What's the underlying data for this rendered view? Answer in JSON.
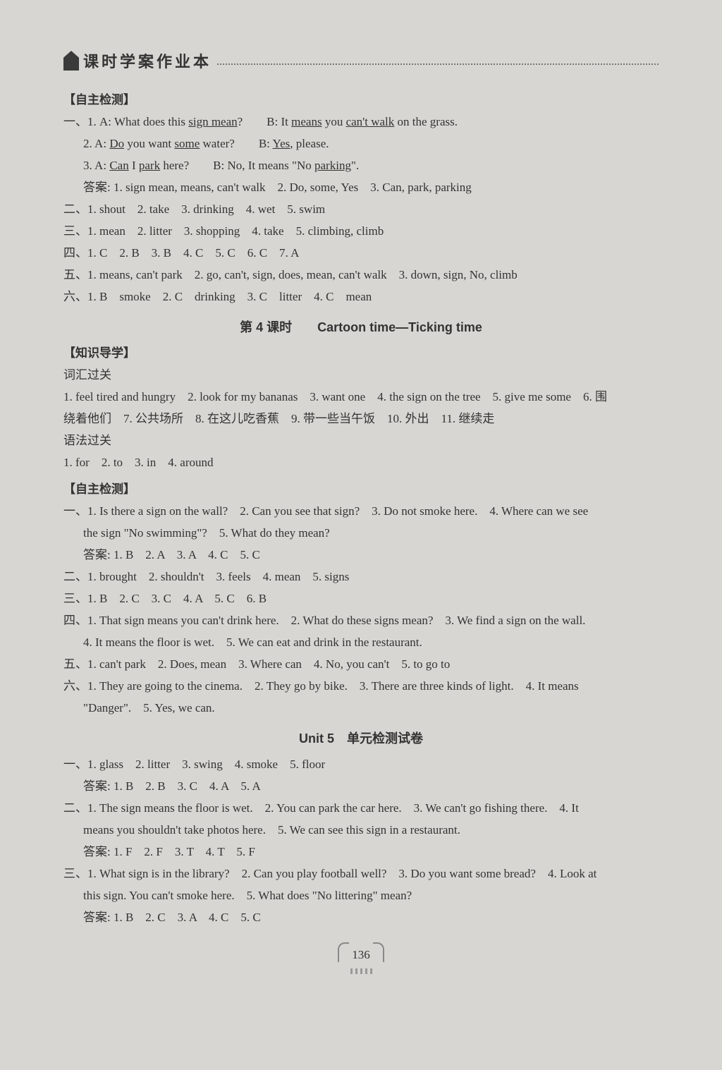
{
  "header": {
    "title": "课时学案作业本"
  },
  "sec1": {
    "label": "【自主检测】",
    "l1a": "一、1. A: What does this ",
    "l1b": "sign mean",
    "l1c": "?　　B: It ",
    "l1d": "means",
    "l1e": " you ",
    "l1f": "can't walk",
    "l1g": " on the grass.",
    "l2a": "2. A: ",
    "l2b": "Do",
    "l2c": " you want ",
    "l2d": "some",
    "l2e": " water?　　B: ",
    "l2f": "Yes",
    "l2g": ", please.",
    "l3a": "3. A: ",
    "l3b": "Can",
    "l3c": " I ",
    "l3d": "park",
    "l3e": " here?　　B: No, It means \"No ",
    "l3f": "parking",
    "l3g": "\".",
    "ans1": "答案: 1. sign mean, means, can't walk　2. Do, some, Yes　3. Can, park, parking",
    "l4": "二、1. shout　2. take　3. drinking　4. wet　5. swim",
    "l5": "三、1. mean　2. litter　3. shopping　4. take　5. climbing, climb",
    "l6": "四、1. C　2. B　3. B　4. C　5. C　6. C　7. A",
    "l7": "五、1. means, can't park　2. go, can't, sign, does, mean, can't walk　3. down, sign, No, climb",
    "l8": "六、1. B　smoke　2. C　drinking　3. C　litter　4. C　mean"
  },
  "title2": "第 4 课时　　Cartoon time—Ticking time",
  "sec2": {
    "label": "【知识导学】",
    "sub1": "词汇过关",
    "l1": "1. feel tired and hungry　2. look for my bananas　3. want one　4. the sign on the tree　5. give me some　6. 围",
    "l1b": "绕着他们　7. 公共场所　8. 在这儿吃香蕉　9. 带一些当午饭　10. 外出　11. 继续走",
    "sub2": "语法过关",
    "l2": "1. for　2. to　3. in　4. around"
  },
  "sec3": {
    "label": "【自主检测】",
    "l1": "一、1. Is there a sign on the wall?　2. Can you see that sign?　3. Do not smoke here.　4. Where can we see",
    "l1b": "the sign \"No swimming\"?　5. What do they mean?",
    "ans1": "答案: 1. B　2. A　3. A　4. C　5. C",
    "l2": "二、1. brought　2. shouldn't　3. feels　4. mean　5. signs",
    "l3": "三、1. B　2. C　3. C　4. A　5. C　6. B",
    "l4": "四、1. That sign means you can't drink here.　2. What do these signs mean?　3. We find a sign on the wall.",
    "l4b": "4. It means the floor is wet.　5. We can eat and drink in the restaurant.",
    "l5": "五、1. can't park　2. Does, mean　3. Where can　4. No, you can't　5. to go to",
    "l6": "六、1. They are going to the cinema.　2. They go by bike.　3. There are three kinds of light.　4. It means",
    "l6b": "\"Danger\".　5. Yes, we can."
  },
  "title3": "Unit 5　单元检测试卷",
  "sec4": {
    "l1": "一、1. glass　2. litter　3. swing　4. smoke　5. floor",
    "ans1": "答案: 1. B　2. B　3. C　4. A　5. A",
    "l2": "二、1. The sign means the floor is wet.　2. You can park the car here.　3. We can't go fishing there.　4. It",
    "l2b": "means you shouldn't take photos here.　5. We can see this sign in a restaurant.",
    "ans2": "答案: 1. F　2. F　3. T　4. T　5. F",
    "l3": "三、1. What sign is in the library?　2. Can you play football well?　3. Do you want some bread?　4. Look at",
    "l3b": "this sign. You can't smoke here.　5. What does \"No littering\" mean?",
    "ans3": "答案: 1. B　2. C　3. A　4. C　5. C"
  },
  "pagenum": "136"
}
